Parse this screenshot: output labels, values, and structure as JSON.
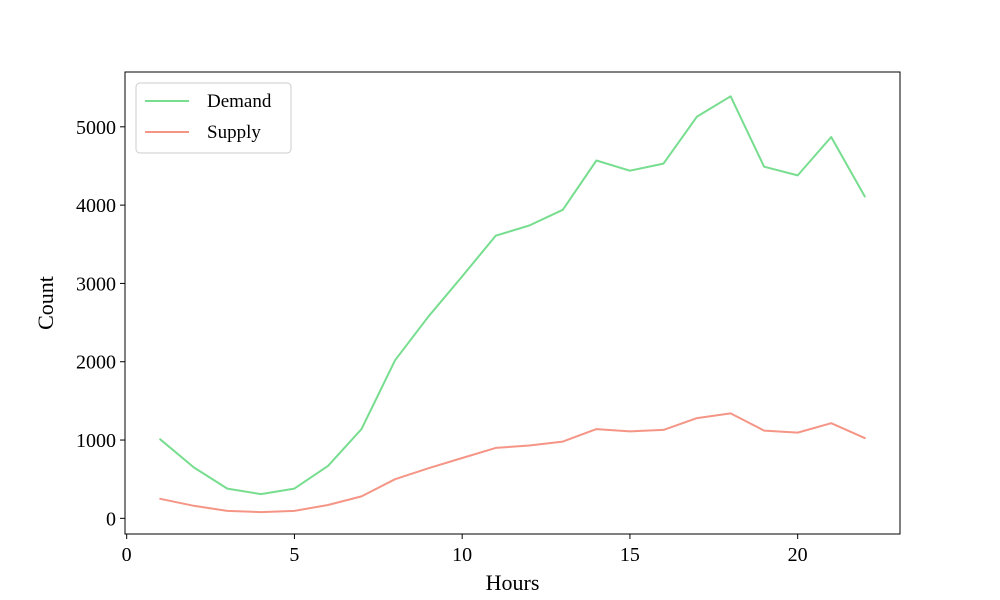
{
  "chart_data": {
    "type": "line",
    "title": "",
    "xlabel": "Hours",
    "ylabel": "Count",
    "xlim": [
      -0.05,
      23.05
    ],
    "ylim": [
      -200,
      5700
    ],
    "xticks": [
      0,
      5,
      10,
      15,
      20
    ],
    "yticks": [
      0,
      1000,
      2000,
      3000,
      4000,
      5000
    ],
    "grid": false,
    "legend_position": "top-left",
    "x": [
      1,
      2,
      3,
      4,
      5,
      6,
      7,
      8,
      9,
      10,
      11,
      12,
      13,
      14,
      15,
      16,
      17,
      18,
      19,
      20,
      21,
      22
    ],
    "series": [
      {
        "name": "Demand",
        "color": "#77dd8f",
        "values": [
          1010,
          650,
          380,
          310,
          380,
          670,
          1140,
          2020,
          2580,
          3090,
          3610,
          3740,
          3940,
          4570,
          4440,
          4530,
          5130,
          5390,
          4490,
          4380,
          4870,
          4110
        ]
      },
      {
        "name": "Supply",
        "color": "#f59586",
        "values": [
          250,
          160,
          95,
          80,
          95,
          170,
          280,
          500,
          640,
          770,
          900,
          930,
          980,
          1140,
          1110,
          1130,
          1280,
          1340,
          1120,
          1095,
          1215,
          1025
        ]
      }
    ]
  }
}
